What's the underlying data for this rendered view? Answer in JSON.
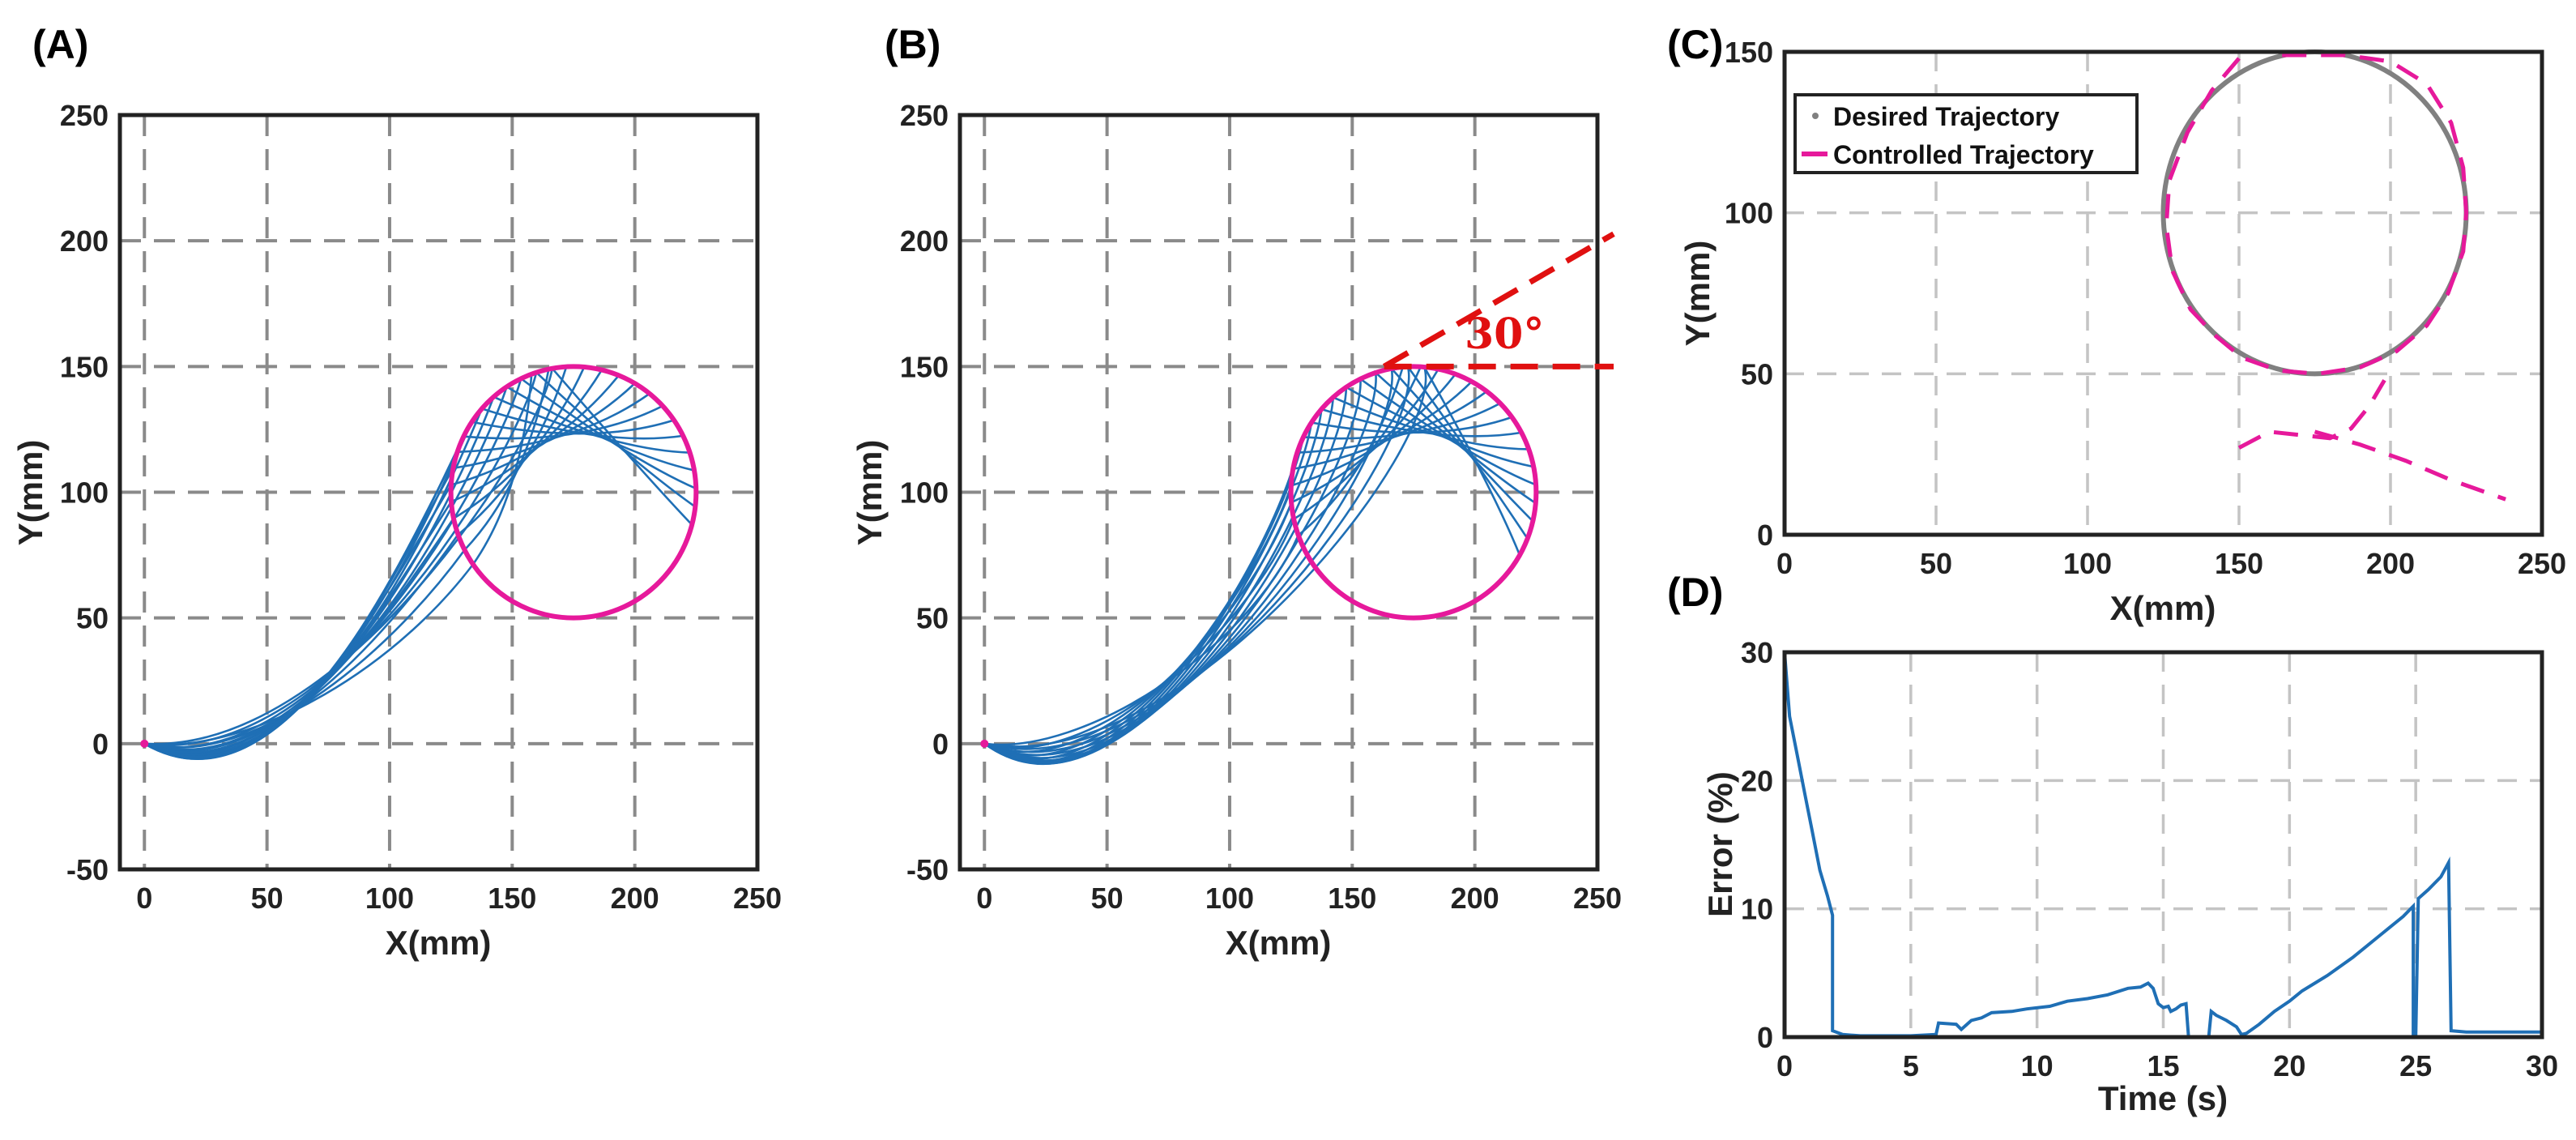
{
  "chart_data": [
    {
      "panel": "(A)",
      "type": "line",
      "xlabel": "X(mm)",
      "ylabel": "Y(mm)",
      "xlim": [
        -10,
        250
      ],
      "ylim": [
        -50,
        250
      ],
      "xticks": [
        0,
        50,
        100,
        150,
        200,
        250
      ],
      "yticks": [
        -50,
        0,
        50,
        100,
        150,
        200,
        250
      ],
      "grid": true,
      "circle": {
        "center": [
          175,
          100
        ],
        "radius": 50,
        "color": "#e6199b"
      },
      "curves": {
        "origin": [
          0,
          0
        ],
        "count": 16,
        "color": "#1f6fb5"
      }
    },
    {
      "panel": "(B)",
      "type": "line",
      "xlabel": "X(mm)",
      "ylabel": "Y(mm)",
      "xlim": [
        -10,
        250
      ],
      "ylim": [
        -50,
        250
      ],
      "xticks": [
        0,
        50,
        100,
        150,
        200,
        250
      ],
      "yticks": [
        -50,
        0,
        50,
        100,
        150,
        200,
        250
      ],
      "grid": true,
      "circle": {
        "center": [
          175,
          100
        ],
        "radius": 50,
        "color": "#e6199b"
      },
      "curves": {
        "origin": [
          0,
          0
        ],
        "count": 16,
        "color": "#1f6fb5"
      },
      "annotation": {
        "text": "30°",
        "apex": [
          163,
          150
        ],
        "angle_deg": 30,
        "color": "#e01010"
      }
    },
    {
      "panel": "(C)",
      "type": "line",
      "xlabel": "X(mm)",
      "ylabel": "Y(mm)",
      "xlim": [
        0,
        250
      ],
      "ylim": [
        0,
        150
      ],
      "xticks": [
        0,
        50,
        100,
        150,
        200,
        250
      ],
      "yticks": [
        0,
        50,
        100,
        150
      ],
      "grid": true,
      "legend_position": "top-left",
      "series": [
        {
          "name": "Desired Trajectory",
          "color": "#808080",
          "style": "solid",
          "center": [
            175,
            100
          ],
          "radius": 50
        },
        {
          "name": "Controlled Trajectory",
          "color": "#e6199b",
          "style": "dashed",
          "points": [
            [
              150,
              148
            ],
            [
              141,
              138
            ],
            [
              133,
              125
            ],
            [
              127,
              110
            ],
            [
              126,
              96
            ],
            [
              128,
              82
            ],
            [
              134,
              70
            ],
            [
              142,
              62
            ],
            [
              151,
              55
            ],
            [
              163,
              51
            ],
            [
              176,
              50
            ],
            [
              190,
              52
            ],
            [
              202,
              57
            ],
            [
              212,
              65
            ],
            [
              219,
              75
            ],
            [
              224,
              88
            ],
            [
              225,
              100
            ],
            [
              224,
              114
            ],
            [
              220,
              128
            ],
            [
              212,
              140
            ],
            [
              200,
              147
            ],
            [
              185,
              149
            ],
            [
              168,
              149
            ],
            [
              160,
              149
            ]
          ],
          "tail": [
            [
              150,
              27
            ],
            [
              160,
              32
            ],
            [
              170,
              31
            ],
            [
              180,
              30
            ],
            [
              187,
              33
            ],
            [
              193,
              40
            ],
            [
              198,
              48
            ]
          ],
          "exit": [
            [
              175,
              32
            ],
            [
              190,
              28
            ],
            [
              205,
              23
            ],
            [
              220,
              17
            ],
            [
              238,
              11
            ]
          ]
        }
      ]
    },
    {
      "panel": "(D)",
      "type": "line",
      "xlabel": "Time (s)",
      "ylabel": "Error (%)",
      "xlim": [
        0,
        30
      ],
      "ylim": [
        0,
        30
      ],
      "xticks": [
        0,
        5,
        10,
        15,
        20,
        25,
        30
      ],
      "yticks": [
        0,
        10,
        20,
        30
      ],
      "grid": true,
      "series": [
        {
          "name": "Error",
          "color": "#1f6fb5",
          "points": [
            [
              0,
              30
            ],
            [
              0.2,
              25
            ],
            [
              0.5,
              22
            ],
            [
              0.8,
              19
            ],
            [
              1.1,
              16
            ],
            [
              1.4,
              13
            ],
            [
              1.7,
              11
            ],
            [
              1.9,
              9.5
            ],
            [
              1.9,
              0.5
            ],
            [
              2.3,
              0.2
            ],
            [
              3,
              0.1
            ],
            [
              5,
              0.1
            ],
            [
              6,
              0.2
            ],
            [
              6.1,
              1.1
            ],
            [
              6.8,
              1.0
            ],
            [
              7,
              0.6
            ],
            [
              7.4,
              1.3
            ],
            [
              7.8,
              1.5
            ],
            [
              8.2,
              1.9
            ],
            [
              9,
              2.0
            ],
            [
              9.6,
              2.2
            ],
            [
              10.5,
              2.4
            ],
            [
              11.2,
              2.8
            ],
            [
              12,
              3.0
            ],
            [
              12.8,
              3.3
            ],
            [
              13.6,
              3.8
            ],
            [
              14.1,
              3.9
            ],
            [
              14.4,
              4.2
            ],
            [
              14.6,
              3.8
            ],
            [
              14.8,
              2.6
            ],
            [
              15.0,
              2.3
            ],
            [
              15.2,
              2.4
            ],
            [
              15.3,
              2.0
            ],
            [
              15.5,
              2.2
            ],
            [
              15.7,
              2.5
            ],
            [
              15.9,
              2.6
            ],
            [
              16.0,
              0.0
            ],
            [
              16.2,
              0.0
            ],
            [
              16.5,
              0.0
            ],
            [
              16.8,
              0.0
            ],
            [
              16.9,
              2.0
            ],
            [
              17.1,
              1.7
            ],
            [
              17.5,
              1.3
            ],
            [
              17.9,
              0.8
            ],
            [
              18.1,
              0.2
            ],
            [
              18.3,
              0.3
            ],
            [
              18.8,
              1.0
            ],
            [
              19.4,
              2.0
            ],
            [
              20,
              2.8
            ],
            [
              20.5,
              3.6
            ],
            [
              21,
              4.2
            ],
            [
              21.5,
              4.8
            ],
            [
              22,
              5.5
            ],
            [
              22.5,
              6.2
            ],
            [
              23,
              7.0
            ],
            [
              23.5,
              7.8
            ],
            [
              24,
              8.6
            ],
            [
              24.5,
              9.4
            ],
            [
              24.9,
              10.2
            ],
            [
              24.9,
              0.2
            ],
            [
              25,
              0.1
            ],
            [
              25.1,
              10.8
            ],
            [
              25.5,
              11.5
            ],
            [
              26,
              12.5
            ],
            [
              26.3,
              13.6
            ],
            [
              26.4,
              0.5
            ],
            [
              27,
              0.4
            ],
            [
              30,
              0.4
            ]
          ]
        }
      ]
    }
  ]
}
